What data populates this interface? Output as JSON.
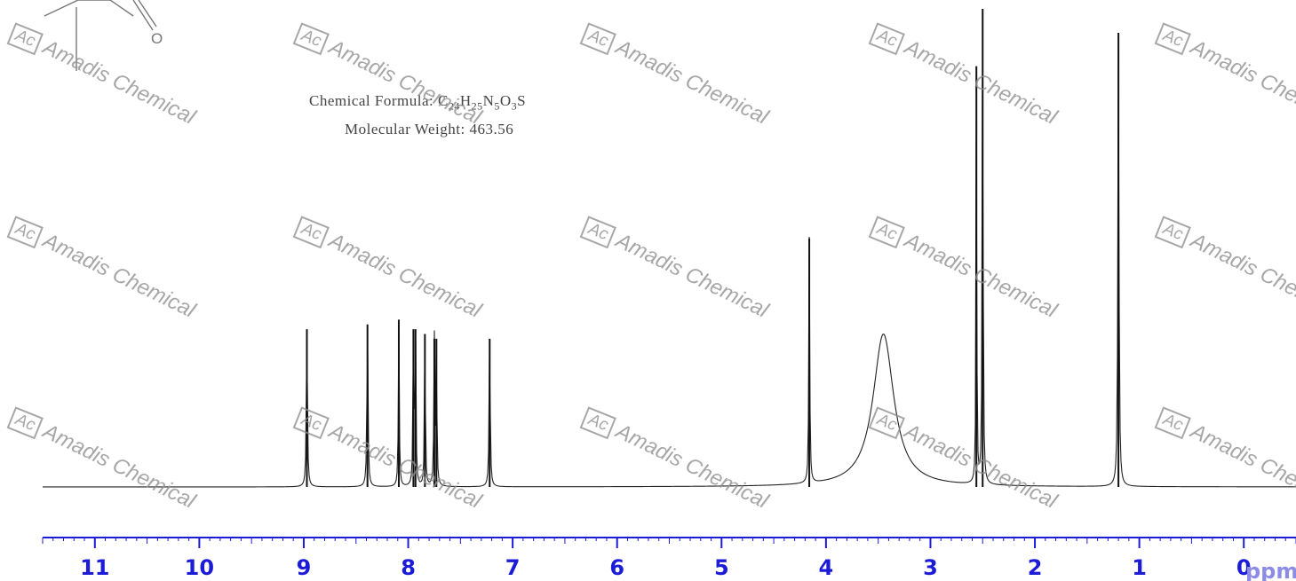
{
  "header": {
    "formula_label": "Chemical Formula:",
    "formula_parts": [
      {
        "text": "C",
        "sub": "24"
      },
      {
        "text": "H",
        "sub": "25"
      },
      {
        "text": "N",
        "sub": "5"
      },
      {
        "text": "O",
        "sub": "3"
      },
      {
        "text": "S",
        "sub": ""
      }
    ],
    "mw_text": "Molecular Weight: 463.56"
  },
  "watermark": {
    "logo": "Ac",
    "text": "Amadis Chemical"
  },
  "structure_fragment": {
    "atom_label": "O"
  },
  "chart_data": {
    "type": "line",
    "title": "",
    "xlabel": "ppm",
    "ylabel": "",
    "xlim": [
      11.5,
      -0.5
    ],
    "x_reversed": true,
    "ylim": [
      0,
      1.0
    ],
    "x_ticks": [
      11,
      10,
      9,
      8,
      7,
      6,
      5,
      4,
      3,
      2,
      1,
      0
    ],
    "grid": false,
    "series": [
      {
        "peaks": [
          {
            "ppm": 8.97,
            "height": 0.33,
            "width": 0.006
          },
          {
            "ppm": 8.39,
            "height": 0.34,
            "width": 0.006
          },
          {
            "ppm": 8.09,
            "height": 0.35,
            "width": 0.005
          },
          {
            "ppm": 7.95,
            "height": 0.33,
            "width": 0.005
          },
          {
            "ppm": 7.93,
            "height": 0.33,
            "width": 0.005
          },
          {
            "ppm": 7.84,
            "height": 0.32,
            "width": 0.005
          },
          {
            "ppm": 7.75,
            "height": 0.31,
            "width": 0.005
          },
          {
            "ppm": 7.73,
            "height": 0.31,
            "width": 0.005
          },
          {
            "ppm": 7.22,
            "height": 0.31,
            "width": 0.006
          },
          {
            "ppm": 4.16,
            "height": 0.52,
            "width": 0.005
          },
          {
            "ppm": 3.45,
            "height": 0.32,
            "width": 0.12
          },
          {
            "ppm": 2.56,
            "height": 0.88,
            "width": 0.004
          },
          {
            "ppm": 2.5,
            "height": 1.0,
            "width": 0.005
          },
          {
            "ppm": 1.2,
            "height": 0.95,
            "width": 0.006
          }
        ]
      }
    ]
  }
}
